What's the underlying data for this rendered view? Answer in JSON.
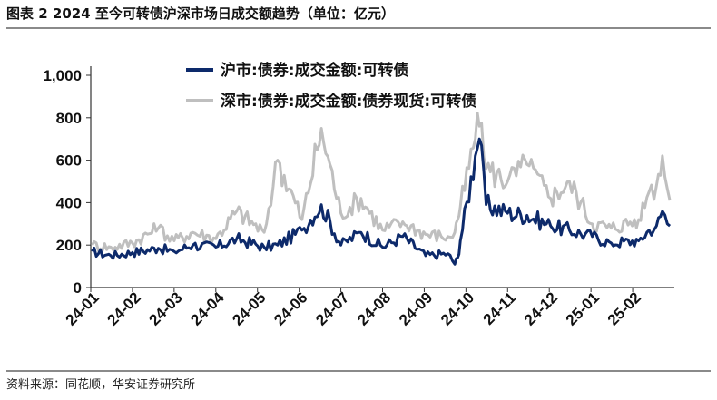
{
  "figure": {
    "title": "图表 2  2024 至今可转债沪深市场日成交额趋势（单位：亿元）",
    "source": "资料来源：同花顺，华安证券研究所"
  },
  "chart_data": {
    "type": "line",
    "title": "",
    "xlabel": "",
    "ylabel": "",
    "ylim": [
      0,
      1000
    ],
    "yticks": [
      0,
      200,
      400,
      600,
      800,
      1000
    ],
    "ytick_labels": [
      "0",
      "200",
      "400",
      "600",
      "800",
      "1,000"
    ],
    "xtick_labels": [
      "24-01",
      "24-02",
      "24-03",
      "24-04",
      "24-05",
      "24-06",
      "24-07",
      "24-08",
      "24-09",
      "24-10",
      "24-11",
      "24-12",
      "25-01",
      "25-02"
    ],
    "legend_position": "top-center",
    "grid": false,
    "x_month_index_note_values": [
      0,
      0.5,
      1,
      1.5,
      2,
      2.5,
      3,
      3.5,
      4,
      4.5,
      5,
      5.5,
      6,
      6.5,
      7,
      7.5,
      8,
      8.5,
      8.7,
      8.8,
      8.9,
      9.05,
      9.15,
      9.5,
      10,
      10.5,
      11,
      11.5,
      12,
      12.5,
      13,
      13.3,
      13.5,
      13.7,
      13.8
    ],
    "x": [
      "2024-01-02",
      "2024-01-16",
      "2024-02-01",
      "2024-02-19",
      "2024-03-01",
      "2024-03-15",
      "2024-04-01",
      "2024-04-16",
      "2024-05-06",
      "2024-05-16",
      "2024-06-03",
      "2024-06-17",
      "2024-07-01",
      "2024-07-16",
      "2024-08-01",
      "2024-08-16",
      "2024-09-02",
      "2024-09-18",
      "2024-09-23",
      "2024-09-25",
      "2024-09-27",
      "2024-10-08",
      "2024-10-11",
      "2024-10-16",
      "2024-11-01",
      "2024-11-15",
      "2024-12-02",
      "2024-12-16",
      "2025-01-02",
      "2025-01-16",
      "2025-02-05",
      "2025-02-12",
      "2025-02-17",
      "2025-02-21",
      "2025-02-26"
    ],
    "series": [
      {
        "name": "沪市:债券:成交金额:可转债",
        "color": "#0d2a6b",
        "values": [
          170,
          150,
          165,
          185,
          170,
          200,
          190,
          230,
          190,
          200,
          270,
          390,
          200,
          260,
          190,
          240,
          150,
          160,
          110,
          140,
          220,
          620,
          700,
          390,
          350,
          340,
          290,
          270,
          240,
          210,
          220,
          270,
          290,
          360,
          290
        ]
      },
      {
        "name": "深市:债券:成交金额:债券现货:可转债",
        "color": "#bfbfbf",
        "values": [
          200,
          190,
          210,
          280,
          220,
          260,
          230,
          360,
          260,
          600,
          320,
          750,
          350,
          420,
          270,
          310,
          250,
          240,
          260,
          320,
          380,
          700,
          760,
          560,
          500,
          580,
          420,
          500,
          300,
          280,
          320,
          450,
          480,
          620,
          410
        ]
      }
    ]
  }
}
